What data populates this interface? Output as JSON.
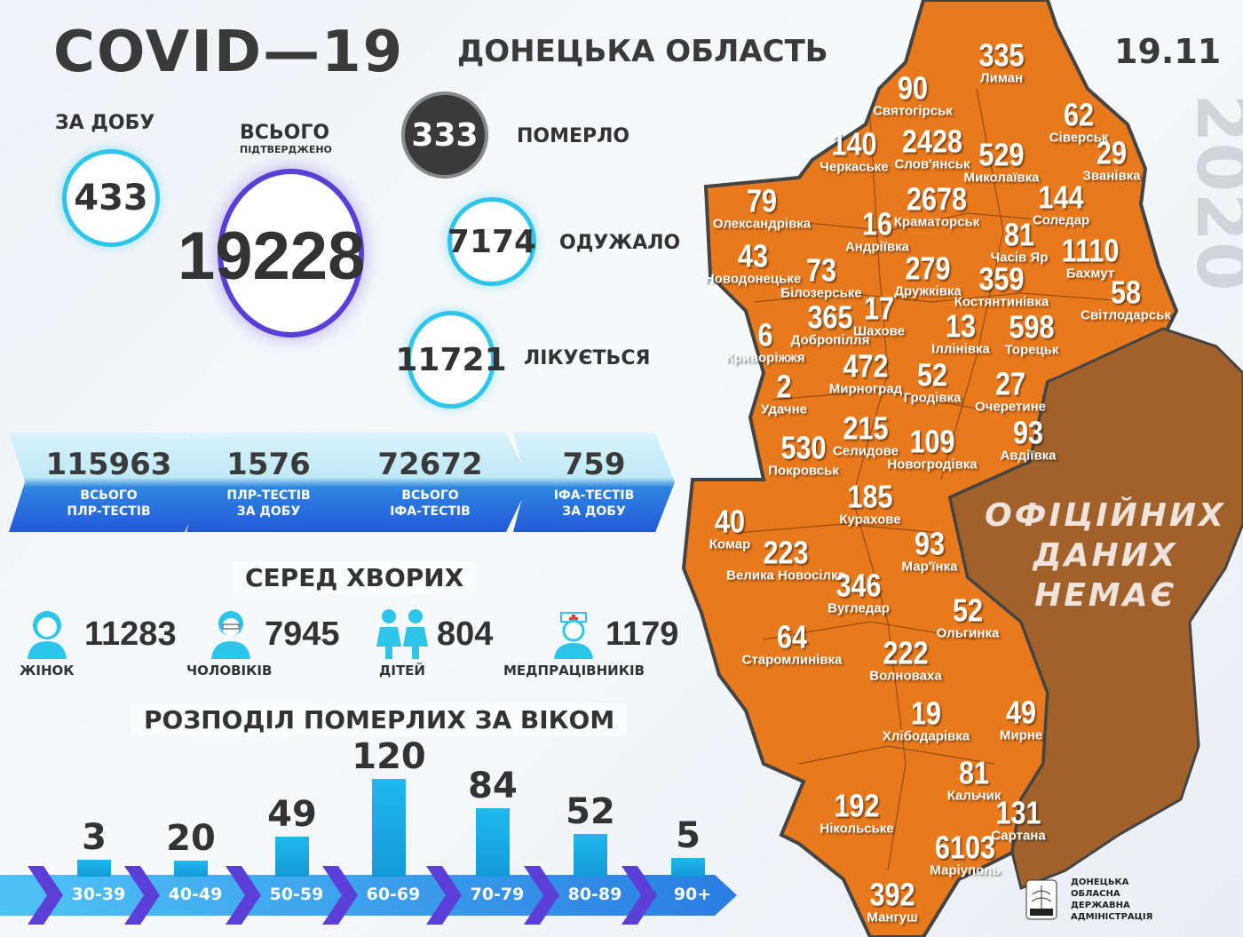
{
  "header": {
    "title": "COVID—19",
    "region": "ДОНЕЦЬКА ОБЛАСТЬ",
    "date": "19.11",
    "year": "2020"
  },
  "stats": {
    "daily": {
      "label": "ЗА ДОБУ",
      "value": "433"
    },
    "total": {
      "label": "ВСЬОГО",
      "sublabel": "ПІДТВЕРДЖЕНО",
      "value": "19228"
    },
    "died": {
      "label": "ПОМЕРЛО",
      "value": "333"
    },
    "recovered": {
      "label": "ОДУЖАЛО",
      "value": "7174"
    },
    "treated": {
      "label": "ЛІКУЄТЬСЯ",
      "value": "11721"
    }
  },
  "tests": [
    {
      "value": "115963",
      "line1": "ВСЬОГО",
      "line2": "ПЛР-ТЕСТІВ"
    },
    {
      "value": "1576",
      "line1": "ПЛР-ТЕСТІВ",
      "line2": "ЗА ДОБУ"
    },
    {
      "value": "72672",
      "line1": "ВСЬОГО",
      "line2": "ІФА-ТЕСТІВ"
    },
    {
      "value": "759",
      "line1": "ІФА-ТЕСТІВ",
      "line2": "ЗА ДОБУ"
    }
  ],
  "among_sick": {
    "heading": "СЕРЕД ХВОРИХ",
    "items": [
      {
        "label": "ЖІНОК",
        "value": "11283",
        "icon": "woman-icon"
      },
      {
        "label": "ЧОЛОВІКІВ",
        "value": "7945",
        "icon": "man-icon"
      },
      {
        "label": "ДІТЕЙ",
        "value": "804",
        "icon": "children-icon"
      },
      {
        "label": "МЕДПРАЦІВНИКІВ",
        "value": "1179",
        "icon": "nurse-icon"
      }
    ]
  },
  "chart_data": {
    "type": "bar",
    "title": "РОЗПОДІЛ ПОМЕРЛИХ ЗА ВІКОМ",
    "categories": [
      "30-39",
      "40-49",
      "50-59",
      "60-69",
      "70-79",
      "80-89",
      "90+"
    ],
    "values": [
      3,
      20,
      49,
      120,
      84,
      52,
      5
    ]
  },
  "map": {
    "no_data": [
      "ОФІЦІЙНИХ",
      "ДАНИХ",
      "НЕМАЄ"
    ],
    "colors": {
      "reported": "#e8791c",
      "no_data": "#a0612b"
    },
    "regions": [
      {
        "name": "Лиман",
        "value": "335"
      },
      {
        "name": "Святогірськ",
        "value": "90"
      },
      {
        "name": "Сіверськ",
        "value": "62"
      },
      {
        "name": "Черкаське",
        "value": "140"
      },
      {
        "name": "Слов'янськ",
        "value": "2428"
      },
      {
        "name": "Миколаївка",
        "value": "529"
      },
      {
        "name": "Званівка",
        "value": "29"
      },
      {
        "name": "Олександрівка",
        "value": "79"
      },
      {
        "name": "Краматорськ",
        "value": "2678"
      },
      {
        "name": "Соледар",
        "value": "144"
      },
      {
        "name": "Андріївка",
        "value": "16"
      },
      {
        "name": "Часів Яр",
        "value": "81"
      },
      {
        "name": "Бахмут",
        "value": "1110"
      },
      {
        "name": "Новодонецьке",
        "value": "43"
      },
      {
        "name": "Білозерське",
        "value": "73"
      },
      {
        "name": "Дружківка",
        "value": "279"
      },
      {
        "name": "Костянтинівка",
        "value": "359"
      },
      {
        "name": "Світлодарськ",
        "value": "58"
      },
      {
        "name": "Добропілля",
        "value": "365"
      },
      {
        "name": "Шахове",
        "value": "17"
      },
      {
        "name": "Криворіжжя",
        "value": "6"
      },
      {
        "name": "Іллінівка",
        "value": "13"
      },
      {
        "name": "Торецьк",
        "value": "598"
      },
      {
        "name": "Мирноград",
        "value": "472"
      },
      {
        "name": "Гродівка",
        "value": "52"
      },
      {
        "name": "Очеретине",
        "value": "27"
      },
      {
        "name": "Удачне",
        "value": "2"
      },
      {
        "name": "Селидове",
        "value": "215"
      },
      {
        "name": "Покровськ",
        "value": "530"
      },
      {
        "name": "Новогродівка",
        "value": "109"
      },
      {
        "name": "Авдіївка",
        "value": "93"
      },
      {
        "name": "Курахове",
        "value": "185"
      },
      {
        "name": "Комар",
        "value": "40"
      },
      {
        "name": "Мар'їнка",
        "value": "93"
      },
      {
        "name": "Велика Новосілка",
        "value": "223"
      },
      {
        "name": "Вугледар",
        "value": "346"
      },
      {
        "name": "Ольгинка",
        "value": "52"
      },
      {
        "name": "Старомлинівка",
        "value": "64"
      },
      {
        "name": "Волноваха",
        "value": "222"
      },
      {
        "name": "Хлібодарівка",
        "value": "19"
      },
      {
        "name": "Мирне",
        "value": "49"
      },
      {
        "name": "Кальчик",
        "value": "81"
      },
      {
        "name": "Нікольське",
        "value": "192"
      },
      {
        "name": "Сартана",
        "value": "131"
      },
      {
        "name": "Маріуполь",
        "value": "6103"
      },
      {
        "name": "Мангуш",
        "value": "392"
      }
    ]
  },
  "logo": {
    "lines": [
      "ДОНЕЦЬКА",
      "ОБЛАСНА",
      "ДЕРЖАВНА",
      "АДМІНІСТРАЦІЯ"
    ]
  }
}
